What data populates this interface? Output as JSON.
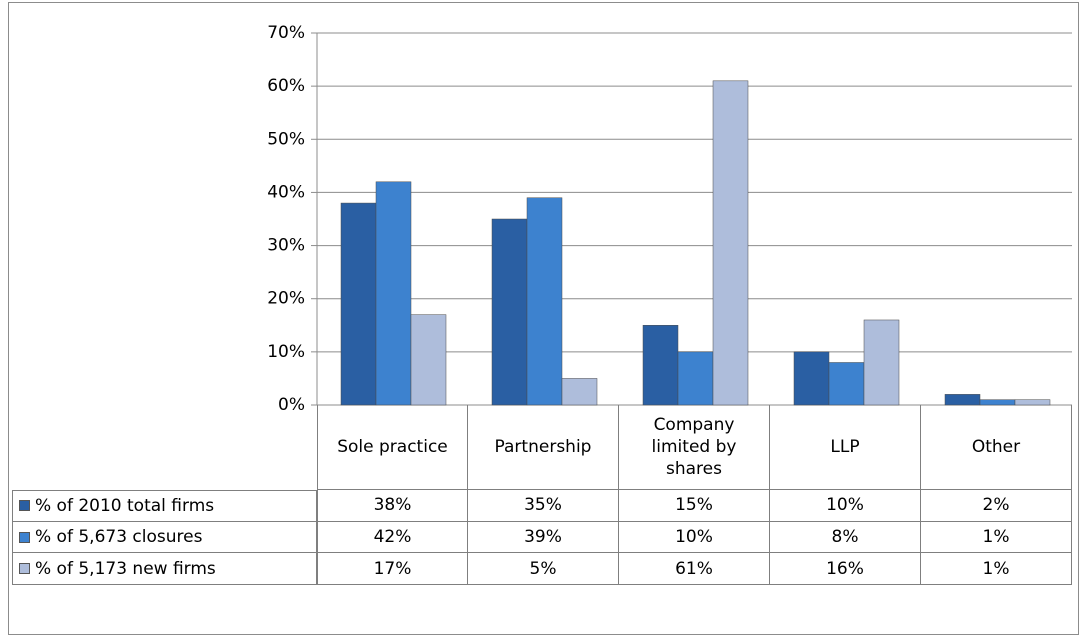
{
  "chart_data": {
    "type": "bar",
    "categories": [
      "Sole practice",
      "Partnership",
      "Company limited by shares",
      "LLP",
      "Other"
    ],
    "series": [
      {
        "name": "% of 2010 total firms",
        "color": "#2a5fa3",
        "values": [
          38,
          35,
          15,
          10,
          2
        ],
        "value_labels": [
          "38%",
          "35%",
          "15%",
          "10%",
          "2%"
        ]
      },
      {
        "name": "% of 5,673 closures",
        "color": "#3d82cf",
        "values": [
          42,
          39,
          10,
          8,
          1
        ],
        "value_labels": [
          "42%",
          "39%",
          "10%",
          "8%",
          "1%"
        ]
      },
      {
        "name": "% of 5,173 new firms",
        "color": "#aebddb",
        "values": [
          17,
          5,
          61,
          16,
          1
        ],
        "value_labels": [
          "17%",
          "5%",
          "61%",
          "16%",
          "1%"
        ]
      }
    ],
    "ylim": [
      0,
      70
    ],
    "yticks": [
      {
        "value": 0,
        "label": "0%"
      },
      {
        "value": 10,
        "label": "10%"
      },
      {
        "value": 20,
        "label": "20%"
      },
      {
        "value": 30,
        "label": "30%"
      },
      {
        "value": 40,
        "label": "40%"
      },
      {
        "value": 50,
        "label": "50%"
      },
      {
        "value": 60,
        "label": "60%"
      },
      {
        "value": 70,
        "label": "70%"
      }
    ],
    "grid": true
  }
}
